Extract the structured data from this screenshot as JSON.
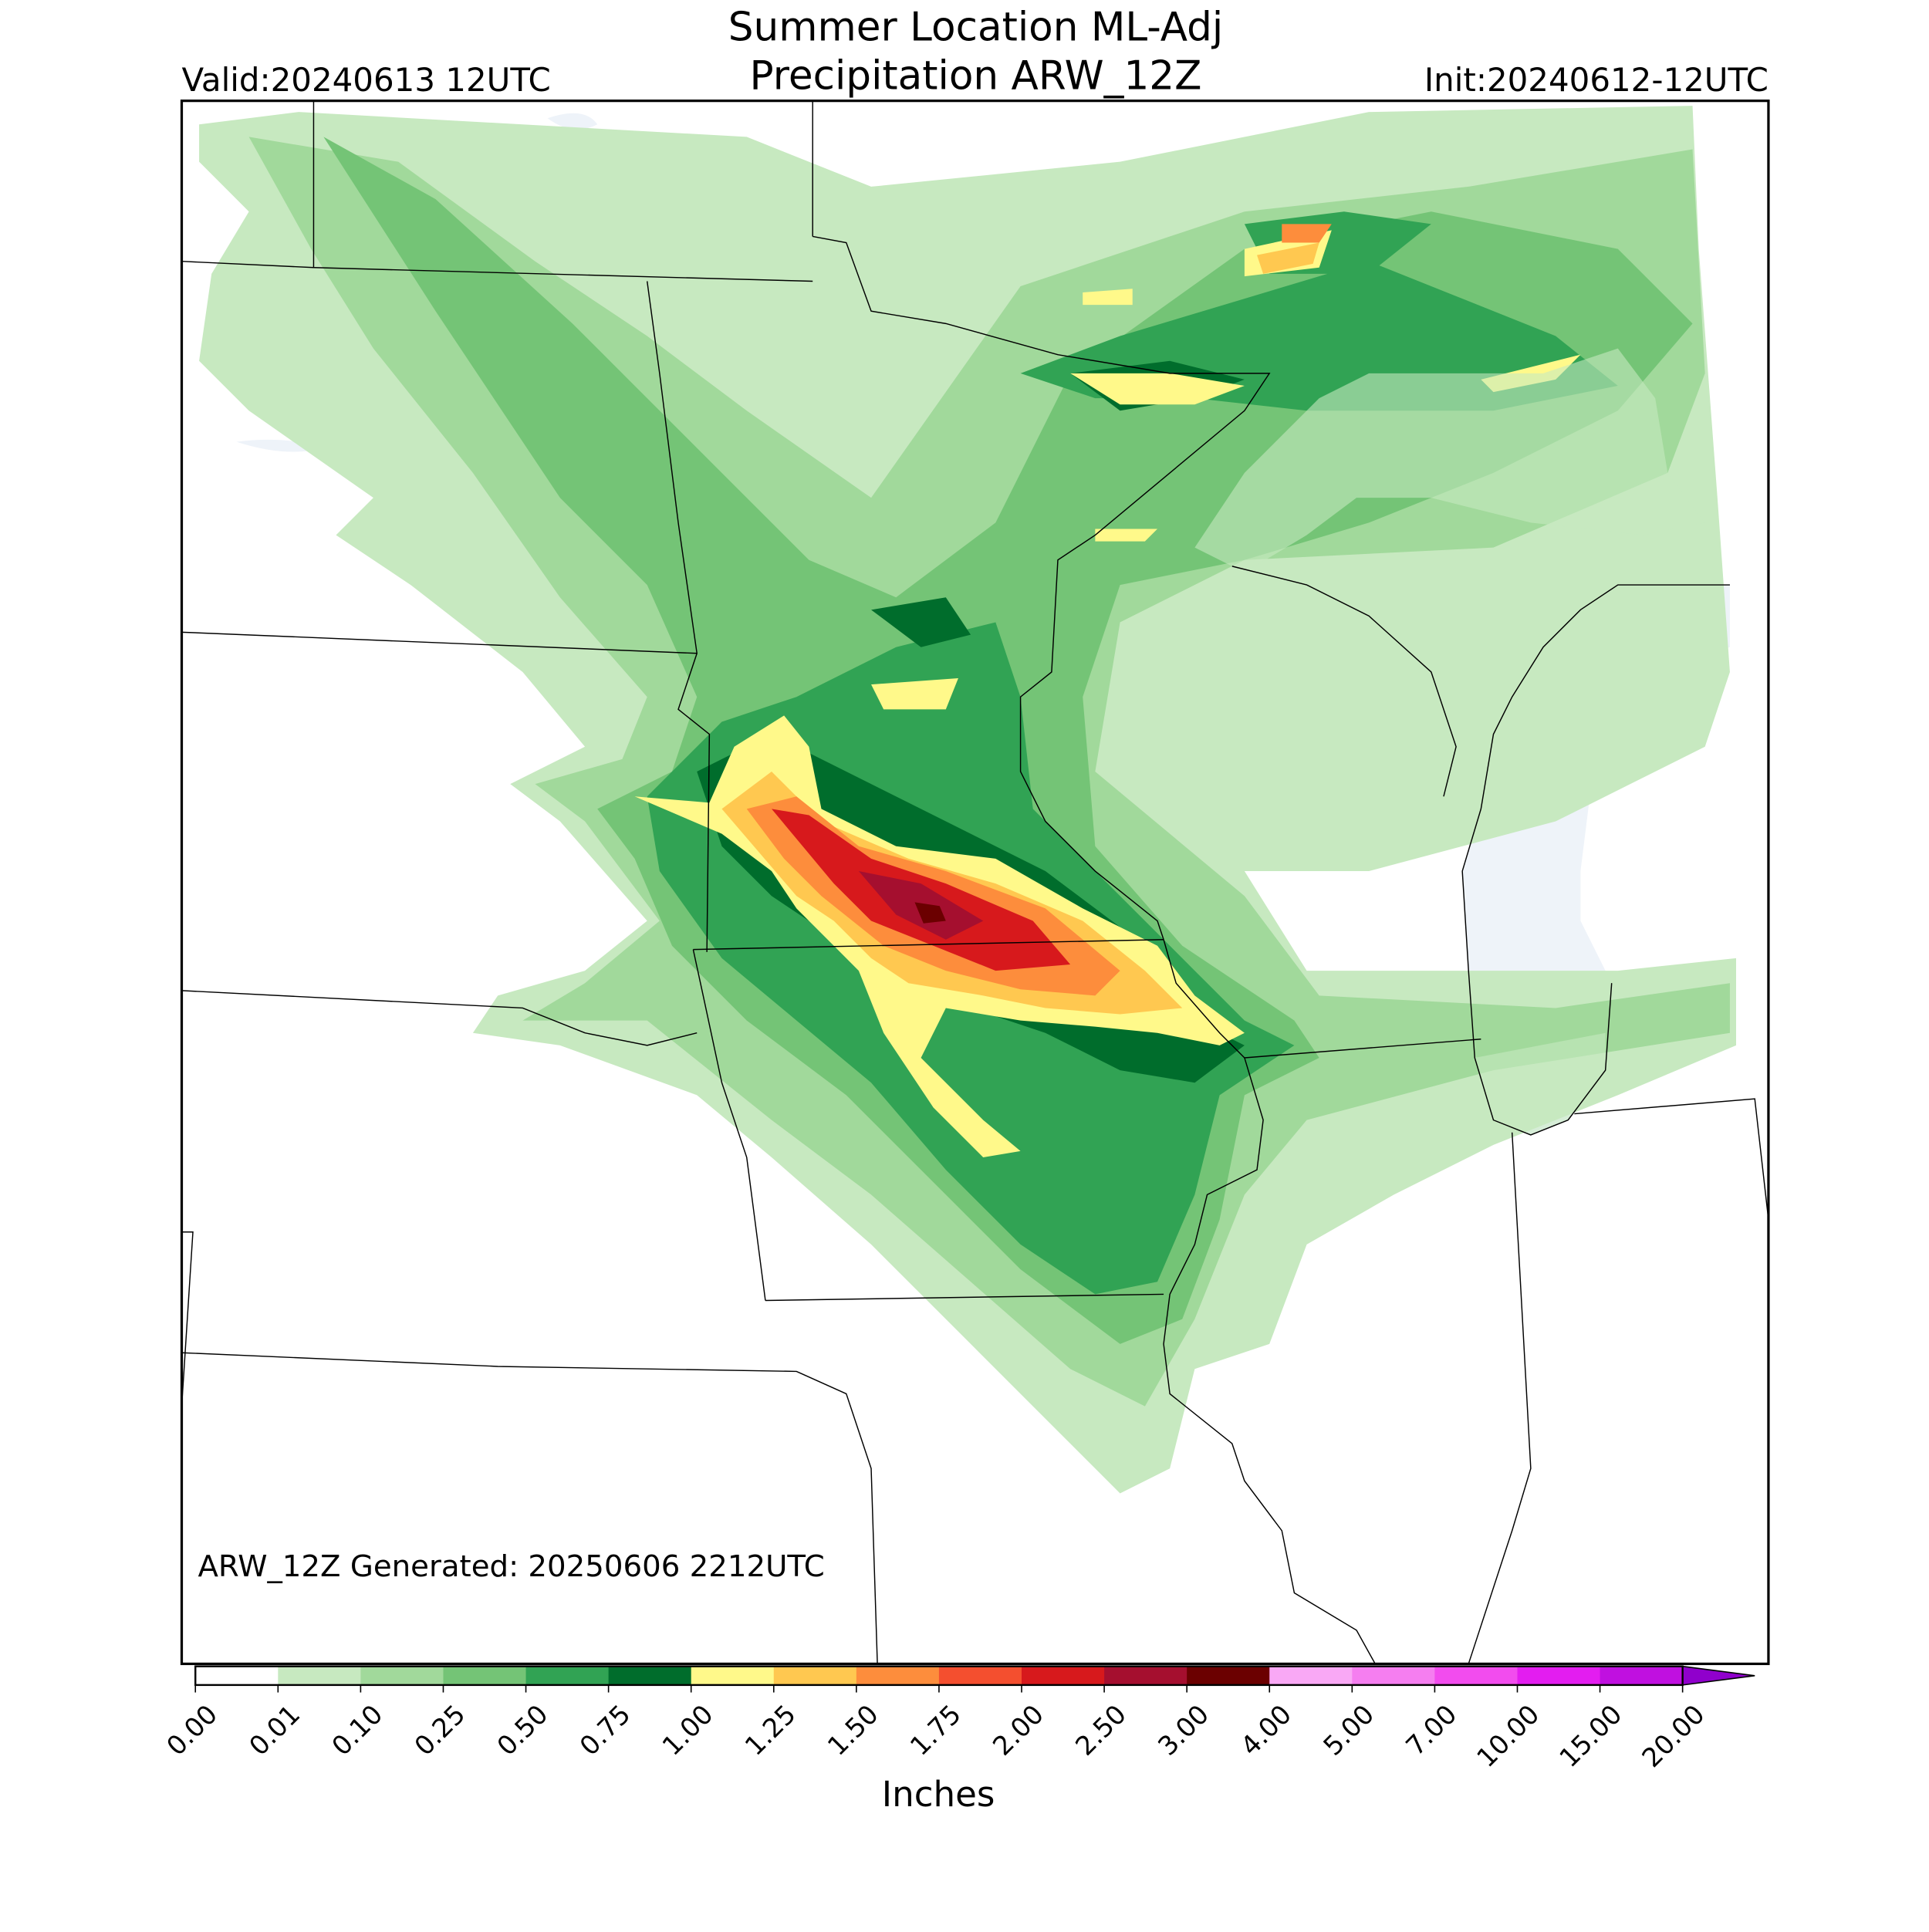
{
  "header": {
    "title_line1": "Summer Location ML-Adj",
    "title_line2": "Precipitation ARW_12Z",
    "valid": "Valid:20240613 12UTC",
    "init": "Init:20240612-12UTC"
  },
  "map": {
    "generated": "ARW_12Z Generated: 20250606 2212UTC"
  },
  "colorbar": {
    "label": "Inches",
    "ticks": [
      {
        "value": 0,
        "label": "0.00"
      },
      {
        "value": 0.01,
        "label": "0.01"
      },
      {
        "value": 0.1,
        "label": "0.10"
      },
      {
        "value": 0.25,
        "label": "0.25"
      },
      {
        "value": 0.5,
        "label": "0.50"
      },
      {
        "value": 0.75,
        "label": "0.75"
      },
      {
        "value": 1,
        "label": "1.00"
      },
      {
        "value": 1.25,
        "label": "1.25"
      },
      {
        "value": 1.5,
        "label": "1.50"
      },
      {
        "value": 1.75,
        "label": "1.75"
      },
      {
        "value": 2,
        "label": "2.00"
      },
      {
        "value": 2.5,
        "label": "2.50"
      },
      {
        "value": 3,
        "label": "3.00"
      },
      {
        "value": 4,
        "label": "4.00"
      },
      {
        "value": 5,
        "label": "5.00"
      },
      {
        "value": 7,
        "label": "7.00"
      },
      {
        "value": 10,
        "label": "10.00"
      },
      {
        "value": 15,
        "label": "15.00"
      },
      {
        "value": 20,
        "label": "20.00"
      }
    ],
    "colors": [
      "#ffffff",
      "#c7e9c0",
      "#a1d99b",
      "#74c476",
      "#31a354",
      "#006d2c",
      "#fff98a",
      "#ffc850",
      "#fd8d3c",
      "#f44f2f",
      "#d7191c",
      "#a50f2f",
      "#6b0000",
      "#f9a8f5",
      "#f57ef0",
      "#f24cee",
      "#e31df0",
      "#c010e0",
      "#9000cc"
    ]
  }
}
